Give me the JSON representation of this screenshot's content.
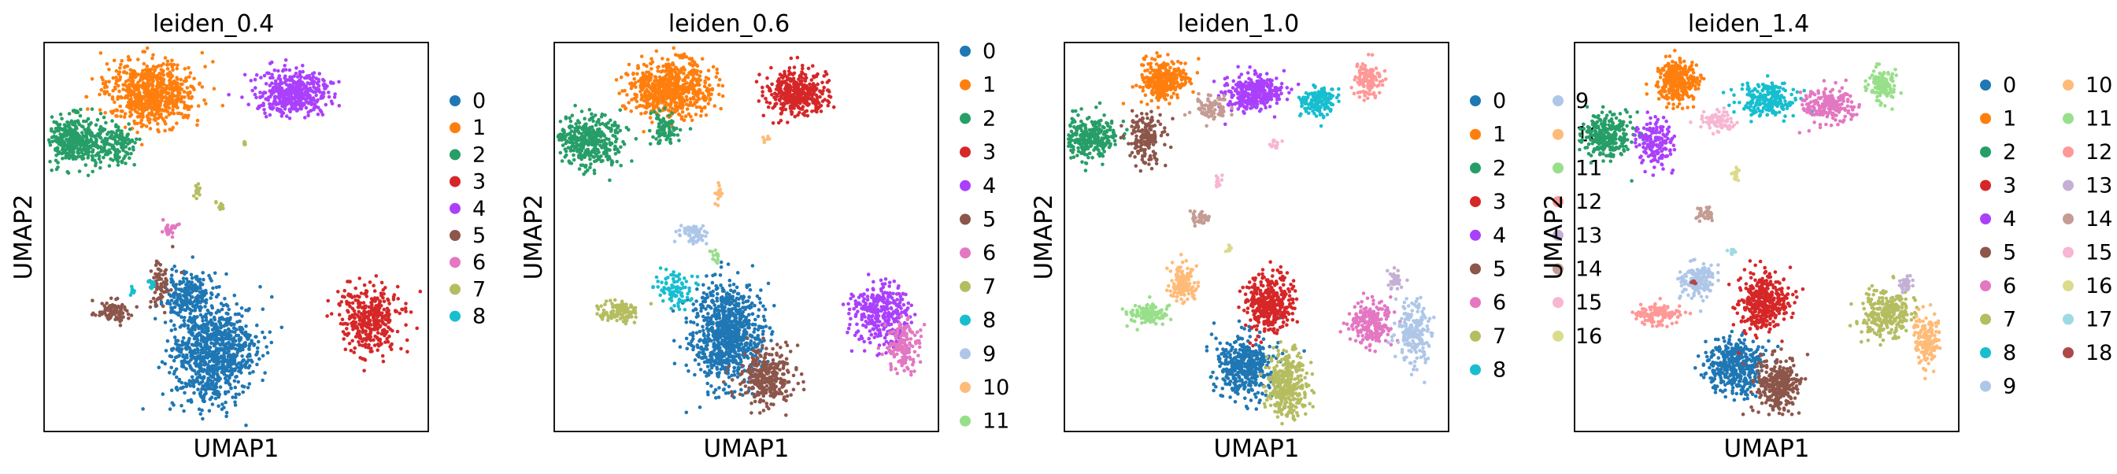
{
  "figure": {
    "xlabel": "UMAP1",
    "ylabel": "UMAP2"
  },
  "palette": [
    "#1f77b4",
    "#ff7f0e",
    "#279e68",
    "#d62728",
    "#aa40fc",
    "#8c564b",
    "#e377c2",
    "#b5bd61",
    "#17becf",
    "#aec7e8",
    "#ffbb78",
    "#98df8a",
    "#ff9896",
    "#c5b0d5",
    "#c49c94",
    "#f7b6d2",
    "#dbdb8d",
    "#9edae5",
    "#ad494a"
  ],
  "chart_data": [
    {
      "type": "scatter",
      "title": "leiden_0.4",
      "xlabel": "UMAP1",
      "ylabel": "UMAP2",
      "legend_position": "right",
      "categories": [
        "0",
        "1",
        "2",
        "3",
        "4",
        "5",
        "6",
        "7",
        "8"
      ]
    },
    {
      "type": "scatter",
      "title": "leiden_0.6",
      "xlabel": "UMAP1",
      "ylabel": "UMAP2",
      "legend_position": "right",
      "categories": [
        "0",
        "1",
        "2",
        "3",
        "4",
        "5",
        "6",
        "7",
        "8",
        "9",
        "10",
        "11"
      ]
    },
    {
      "type": "scatter",
      "title": "leiden_1.0",
      "xlabel": "UMAP1",
      "ylabel": "UMAP2",
      "legend_position": "right",
      "categories": [
        "0",
        "1",
        "2",
        "3",
        "4",
        "5",
        "6",
        "7",
        "8",
        "9",
        "10",
        "11",
        "12",
        "13",
        "14",
        "15",
        "16"
      ]
    },
    {
      "type": "scatter",
      "title": "leiden_1.4",
      "xlabel": "UMAP1",
      "ylabel": "UMAP2",
      "legend_position": "right",
      "categories": [
        "0",
        "1",
        "2",
        "3",
        "4",
        "5",
        "6",
        "7",
        "8",
        "9",
        "10",
        "11",
        "12",
        "13",
        "14",
        "15",
        "16",
        "17",
        "18"
      ]
    }
  ]
}
